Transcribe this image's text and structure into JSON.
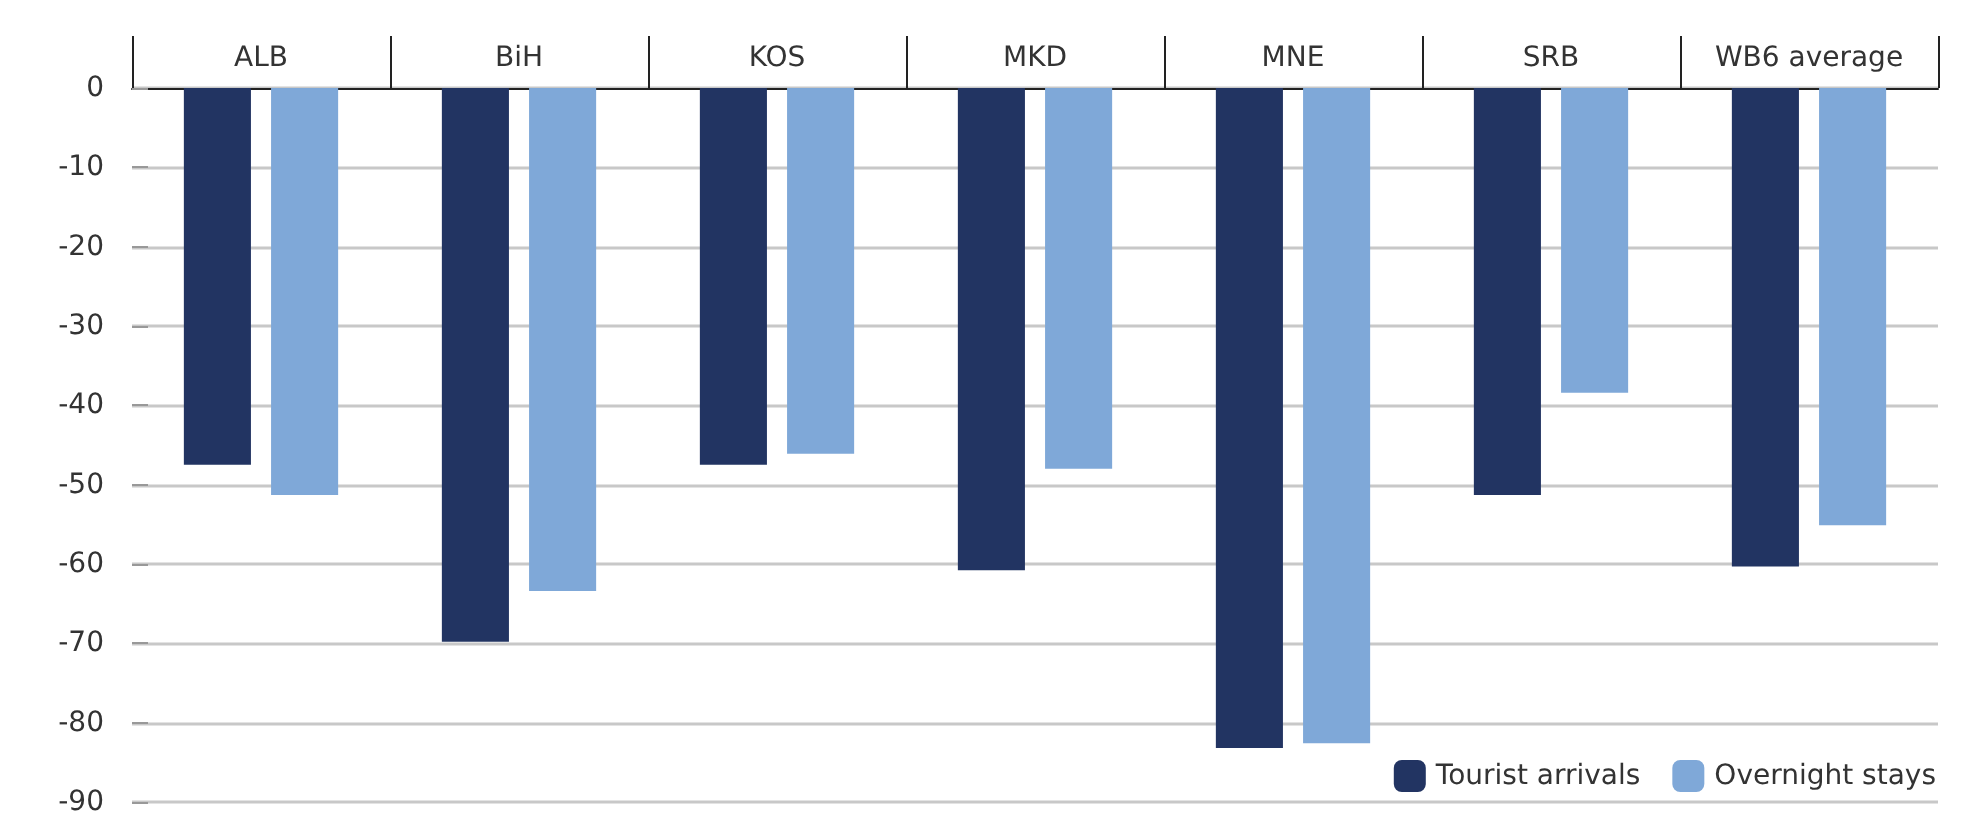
{
  "chart_data": {
    "type": "bar",
    "categories": [
      "ALB",
      "BiH",
      "KOS",
      "MKD",
      "MNE",
      "SRB",
      "WB6 average"
    ],
    "series": [
      {
        "name": "Tourist arrivals",
        "color": "#223462",
        "values": [
          -47.5,
          -69.8,
          -47.5,
          -60.8,
          -83.2,
          -51.3,
          -60.3
        ]
      },
      {
        "name": "Overnight stays",
        "color": "#7fa8d8",
        "values": [
          -51.3,
          -63.4,
          -46.1,
          -48,
          -82.6,
          -38.4,
          -55.1
        ]
      }
    ],
    "ylim": [
      -90,
      0
    ],
    "yticks": [
      0,
      -10,
      -20,
      -30,
      -40,
      -50,
      -60,
      -70,
      -80,
      -90
    ],
    "grid": "y",
    "legend": "bottom right"
  }
}
